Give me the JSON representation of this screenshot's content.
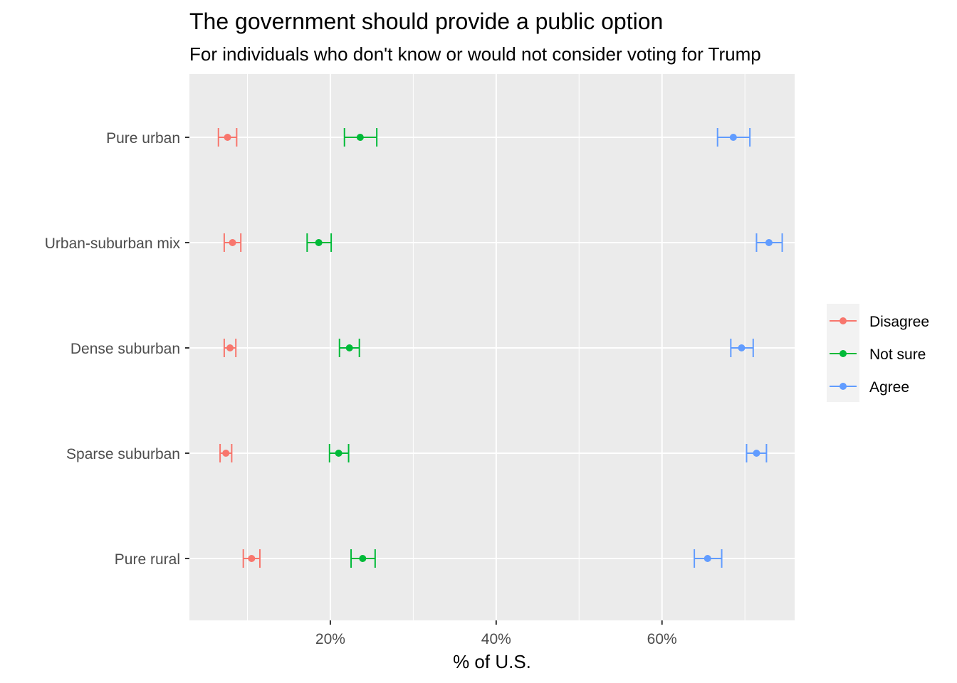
{
  "chart_data": {
    "type": "scatter",
    "subtype": "point-with-errorbars",
    "title": "The government should provide a public option",
    "subtitle": "For individuals who don't know or would not consider voting for Trump",
    "xlabel": "% of U.S.",
    "ylabel": "",
    "xlim": [
      3,
      76
    ],
    "x_ticks": [
      20,
      40,
      60
    ],
    "x_tick_labels": [
      "20%",
      "40%",
      "60%"
    ],
    "x_minor_ticks": [
      10,
      30,
      50,
      70
    ],
    "categories": [
      "Pure urban",
      "Urban-suburban mix",
      "Dense suburban",
      "Sparse suburban",
      "Pure rural"
    ],
    "grid": true,
    "panel_background": "#EBEBEB",
    "legend_position": "right",
    "series": [
      {
        "name": "Disagree",
        "color": "#F8766D",
        "values": [
          7.6,
          8.2,
          7.9,
          7.4,
          10.5
        ],
        "lower": [
          6.5,
          7.2,
          7.2,
          6.7,
          9.5
        ],
        "upper": [
          8.7,
          9.2,
          8.6,
          8.1,
          11.5
        ]
      },
      {
        "name": "Not sure",
        "color": "#00BA38",
        "values": [
          23.6,
          18.6,
          22.3,
          21.0,
          23.9
        ],
        "lower": [
          21.7,
          17.2,
          21.1,
          19.9,
          22.5
        ],
        "upper": [
          25.6,
          20.1,
          23.5,
          22.2,
          25.4
        ]
      },
      {
        "name": "Agree",
        "color": "#619CFF",
        "values": [
          68.6,
          72.9,
          69.6,
          71.4,
          65.5
        ],
        "lower": [
          66.7,
          71.4,
          68.3,
          70.2,
          63.9
        ],
        "upper": [
          70.6,
          74.5,
          71.0,
          72.6,
          67.2
        ]
      }
    ]
  }
}
